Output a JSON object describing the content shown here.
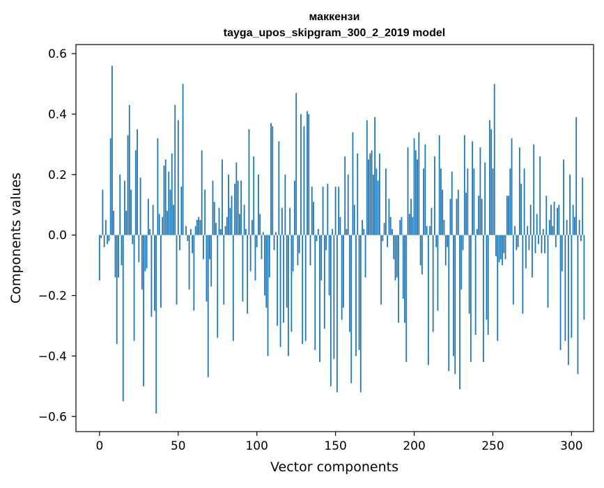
{
  "chart_data": {
    "type": "bar",
    "title_line1": "маккензи",
    "title_line2": "tayga_upos_skipgram_300_2_2019 model",
    "xlabel": "Vector components",
    "ylabel": "Components values",
    "xlim": [
      -15,
      314
    ],
    "ylim": [
      -0.65,
      0.63
    ],
    "xticks": [
      0,
      50,
      100,
      150,
      200,
      250,
      300
    ],
    "xtick_labels": [
      "0",
      "50",
      "100",
      "150",
      "200",
      "250",
      "300"
    ],
    "yticks": [
      -0.6,
      -0.4,
      -0.2,
      0.0,
      0.2,
      0.4,
      0.6
    ],
    "ytick_labels": [
      "−0.6",
      "−0.4",
      "−0.2",
      "0.0",
      "0.2",
      "0.4",
      "0.6"
    ],
    "grid": false,
    "bar_color": "#1f77b4",
    "values": [
      -0.15,
      -0.01,
      0.15,
      -0.04,
      0.05,
      -0.03,
      -0.02,
      0.32,
      0.56,
      0.08,
      -0.14,
      -0.36,
      -0.14,
      0.2,
      -0.1,
      -0.55,
      0.18,
      0.08,
      0.33,
      0.43,
      0.15,
      -0.03,
      -0.35,
      0.28,
      0.35,
      -0.09,
      0.19,
      -0.18,
      -0.5,
      -0.12,
      -0.11,
      0.12,
      0.02,
      -0.27,
      0.1,
      -0.25,
      -0.59,
      0.32,
      0.07,
      -0.24,
      0.06,
      0.23,
      0.25,
      0.08,
      0.21,
      0.15,
      0.27,
      0.1,
      0.43,
      -0.23,
      0.38,
      -0.05,
      0.16,
      0.5,
      0.0,
      0.03,
      -0.02,
      -0.18,
      0.02,
      -0.06,
      -0.25,
      0.03,
      0.05,
      0.06,
      0.05,
      0.28,
      -0.08,
      0.15,
      -0.22,
      -0.47,
      -0.08,
      -0.17,
      0.18,
      0.11,
      0.04,
      -0.34,
      0.09,
      0.02,
      0.25,
      -0.23,
      0.03,
      0.06,
      0.2,
      0.09,
      0.13,
      -0.35,
      0.17,
      0.24,
      0.18,
      0.07,
      0.18,
      -0.22,
      0.1,
      0.02,
      -0.26,
      0.35,
      -0.12,
      0.05,
      0.26,
      -0.15,
      -0.04,
      0.2,
      0.07,
      -0.08,
      0.01,
      -0.2,
      -0.24,
      -0.4,
      -0.14,
      0.37,
      0.36,
      -0.05,
      0.01,
      -0.3,
      0.31,
      -0.37,
      0.09,
      -0.29,
      0.2,
      -0.24,
      -0.4,
      0.09,
      -0.32,
      -0.12,
      0.18,
      0.47,
      -0.1,
      -0.06,
      0.4,
      -0.36,
      0.36,
      -0.35,
      0.41,
      0.4,
      -0.1,
      0.16,
      0.11,
      -0.38,
      -0.02,
      0.02,
      -0.42,
      -0.15,
      0.16,
      -0.31,
      -0.05,
      0.17,
      -0.2,
      -0.5,
      0.02,
      -0.41,
      0.16,
      -0.52,
      0.16,
      0.06,
      -0.28,
      -0.24,
      0.26,
      0.02,
      0.2,
      -0.32,
      -0.49,
      0.34,
      0.1,
      -0.4,
      0.27,
      -0.38,
      -0.52,
      0.05,
      0.02,
      -0.14,
      0.38,
      0.25,
      0.27,
      0.28,
      0.2,
      0.39,
      0.22,
      0.18,
      0.27,
      -0.23,
      -0.02,
      0.04,
      0.22,
      -0.04,
      0.12,
      0.06,
      0.02,
      -0.08,
      -0.15,
      -0.14,
      -0.29,
      0.05,
      0.06,
      -0.21,
      -0.29,
      -0.42,
      0.29,
      0.07,
      0.12,
      0.06,
      0.32,
      0.28,
      0.25,
      0.34,
      -0.1,
      -0.13,
      0.22,
      0.3,
      0.03,
      -0.43,
      0.03,
      0.09,
      -0.32,
      0.26,
      -0.04,
      -0.25,
      0.33,
      0.22,
      0.15,
      0.05,
      -0.1,
      -0.04,
      -0.45,
      0.12,
      0.21,
      -0.4,
      -0.46,
      0.12,
      0.15,
      -0.51,
      -0.18,
      -0.05,
      0.33,
      0.14,
      0.22,
      -0.26,
      -0.42,
      0.31,
      0.22,
      -0.33,
      0.02,
      0.13,
      0.29,
      0.12,
      -0.42,
      0.24,
      -0.28,
      -0.33,
      0.38,
      0.35,
      0.22,
      0.5,
      -0.07,
      -0.35,
      -0.09,
      -0.08,
      -0.1,
      -0.06,
      -0.08,
      0.13,
      0.13,
      0.22,
      0.32,
      -0.23,
      0.03,
      -0.05,
      -0.04,
      0.29,
      0.17,
      -0.26,
      0.22,
      -0.11,
      0.03,
      -0.05,
      0.1,
      -0.14,
      0.3,
      -0.06,
      0.07,
      -0.03,
      0.26,
      -0.06,
      0.02,
      -0.06,
      0.13,
      -0.24,
      0.05,
      0.1,
      0.03,
      0.11,
      -0.04,
      0.09,
      0.1,
      -0.38,
      -0.12,
      0.25,
      -0.35,
      0.05,
      -0.43,
      0.2,
      -0.34,
      0.1,
      0.06,
      0.39,
      -0.46,
      0.05,
      -0.02,
      0.19,
      -0.28
    ]
  }
}
